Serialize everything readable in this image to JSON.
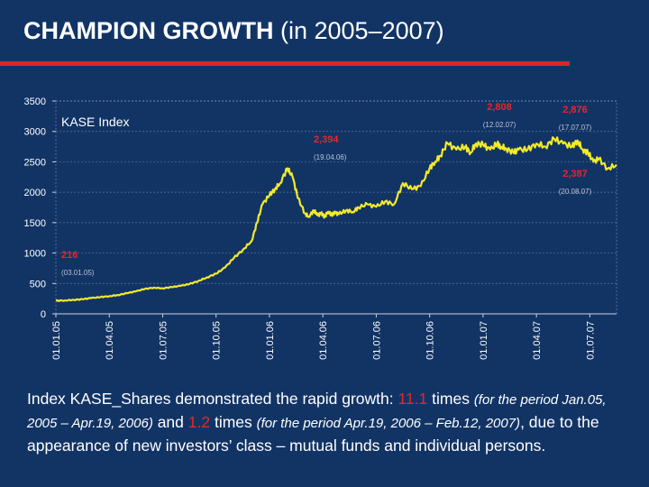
{
  "slide": {
    "title_bold": "CHAMPION GROWTH",
    "title_rest": "(in 2005–2007)"
  },
  "colors": {
    "background": "#123465",
    "accent_red": "#d8262c",
    "line": "#f3ea2a"
  },
  "caption": {
    "p1": "Index KASE_Shares demonstrated the rapid growth: ",
    "v1": "11.1",
    "p2": " times ",
    "p3": "(for the period Jan.05, 2005 – Apr.19, 2006)",
    "p4": " and ",
    "v2": "1.2",
    "p5": " times ",
    "p6": "(for the period Apr.19, 2006 – Feb.12, 2007)",
    "p7": ", due to the appearance of new investors’ class  – mutual funds and individual persons."
  },
  "chart_data": {
    "type": "line",
    "title": "KASE Index",
    "xlabel": "",
    "ylabel": "",
    "ylim": [
      0,
      3500
    ],
    "yticks": [
      "0",
      "500",
      "1000",
      "1500",
      "2000",
      "2500",
      "3000",
      "3500"
    ],
    "xticks": [
      "01.01.05",
      "01.04.05",
      "01.07.05",
      "01.10.05",
      "01.01.06",
      "01.04.06",
      "01.07.06",
      "01.10.06",
      "01.01.07",
      "01.04.07",
      "01.07.07"
    ],
    "xrange_months": [
      0,
      31.5
    ],
    "series": [
      {
        "name": "KASE Index",
        "x": [
          0,
          0.5,
          1,
          1.5,
          2,
          2.5,
          3,
          3.5,
          4,
          4.5,
          5,
          5.5,
          6,
          6.5,
          7,
          7.5,
          8,
          8.5,
          9,
          9.5,
          10,
          10.5,
          11,
          11.3,
          11.6,
          12,
          12.3,
          12.6,
          13,
          13.3,
          13.6,
          14,
          14.2,
          14.5,
          14.7,
          14.9,
          15.1,
          15.3,
          15.5,
          15.7,
          15.9,
          16.3,
          16.7,
          17,
          17.5,
          18,
          18.5,
          19,
          19.5,
          20,
          20.5,
          21,
          21.3,
          21.6,
          22,
          22.5,
          23,
          23.3,
          23.6,
          24,
          24.4,
          24.8,
          25,
          25.3,
          25.7,
          26,
          26.5,
          27,
          27.5,
          28,
          28.5,
          29,
          29.3,
          29.6,
          29.9,
          30.2,
          30.5,
          31,
          31.5
        ],
        "values": [
          216,
          220,
          230,
          240,
          260,
          275,
          290,
          310,
          340,
          370,
          410,
          430,
          420,
          440,
          460,
          490,
          540,
          600,
          660,
          760,
          920,
          1050,
          1200,
          1500,
          1800,
          1950,
          2050,
          2150,
          2394,
          2250,
          1900,
          1650,
          1600,
          1700,
          1620,
          1650,
          1600,
          1680,
          1630,
          1660,
          1640,
          1700,
          1680,
          1750,
          1800,
          1760,
          1850,
          1800,
          2150,
          2050,
          2100,
          2400,
          2500,
          2600,
          2808,
          2700,
          2750,
          2650,
          2800,
          2780,
          2700,
          2800,
          2750,
          2720,
          2650,
          2700,
          2700,
          2800,
          2750,
          2876,
          2800,
          2750,
          2850,
          2700,
          2650,
          2500,
          2550,
          2387,
          2450
        ]
      }
    ],
    "annotations": [
      {
        "value": "216",
        "date": "(03.01.05)"
      },
      {
        "value": "2,394",
        "date": "(19.04.06)"
      },
      {
        "value": "2,808",
        "date": "(12.02.07)"
      },
      {
        "value": "2,876",
        "date": "(17.07.07)"
      },
      {
        "value": "2,387",
        "date": "(20.08.07)"
      }
    ]
  }
}
